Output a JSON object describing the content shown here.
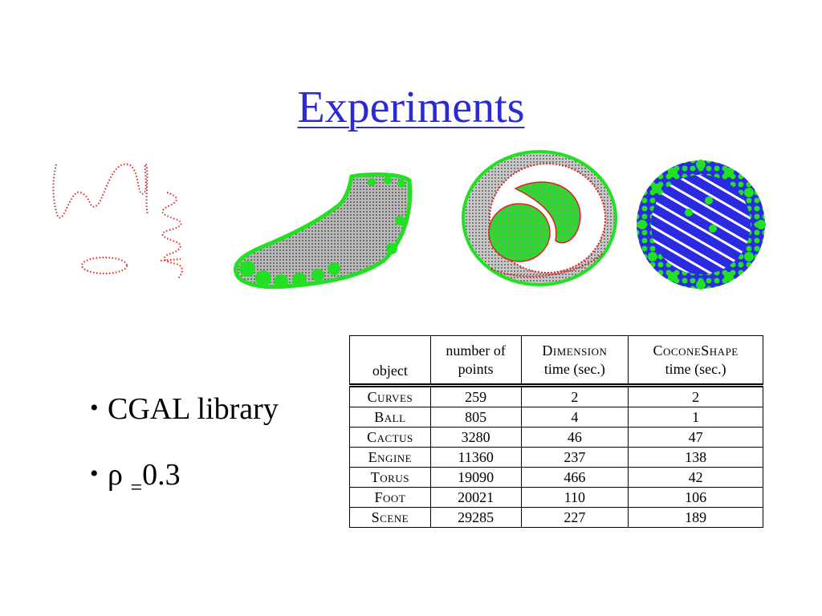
{
  "slide": {
    "title": "Experiments",
    "title_color": "#2b2bd6"
  },
  "figures": [
    {
      "name": "curves",
      "point_color": "#e02020"
    },
    {
      "name": "foot",
      "point_colors": [
        "#22e022",
        "#9a9a9a"
      ]
    },
    {
      "name": "torus",
      "point_colors": [
        "#22e022",
        "#9a9a9a",
        "#e02020"
      ]
    },
    {
      "name": "ball",
      "point_colors": [
        "#22e022",
        "#2a2ae0"
      ]
    }
  ],
  "bullets": {
    "items": [
      {
        "text": "CGAL library"
      },
      {
        "symbol": "ρ",
        "sub": "=",
        "value": "0.3"
      }
    ]
  },
  "table": {
    "headers": [
      {
        "lines": [
          "object"
        ]
      },
      {
        "lines": [
          "number of",
          "points"
        ]
      },
      {
        "lines": [
          "Dimension",
          "time (sec.)"
        ]
      },
      {
        "lines": [
          "CoconeShape",
          "time (sec.)"
        ]
      }
    ],
    "rows": [
      {
        "object": "Curves",
        "points": "259",
        "dimension": "2",
        "cocone": "2"
      },
      {
        "object": "Ball",
        "points": "805",
        "dimension": "4",
        "cocone": "1"
      },
      {
        "object": "Cactus",
        "points": "3280",
        "dimension": "46",
        "cocone": "47"
      },
      {
        "object": "Engine",
        "points": "11360",
        "dimension": "237",
        "cocone": "138"
      },
      {
        "object": "Torus",
        "points": "19090",
        "dimension": "466",
        "cocone": "42"
      },
      {
        "object": "Foot",
        "points": "20021",
        "dimension": "110",
        "cocone": "106"
      },
      {
        "object": "Scene",
        "points": "29285",
        "dimension": "227",
        "cocone": "189"
      }
    ]
  }
}
